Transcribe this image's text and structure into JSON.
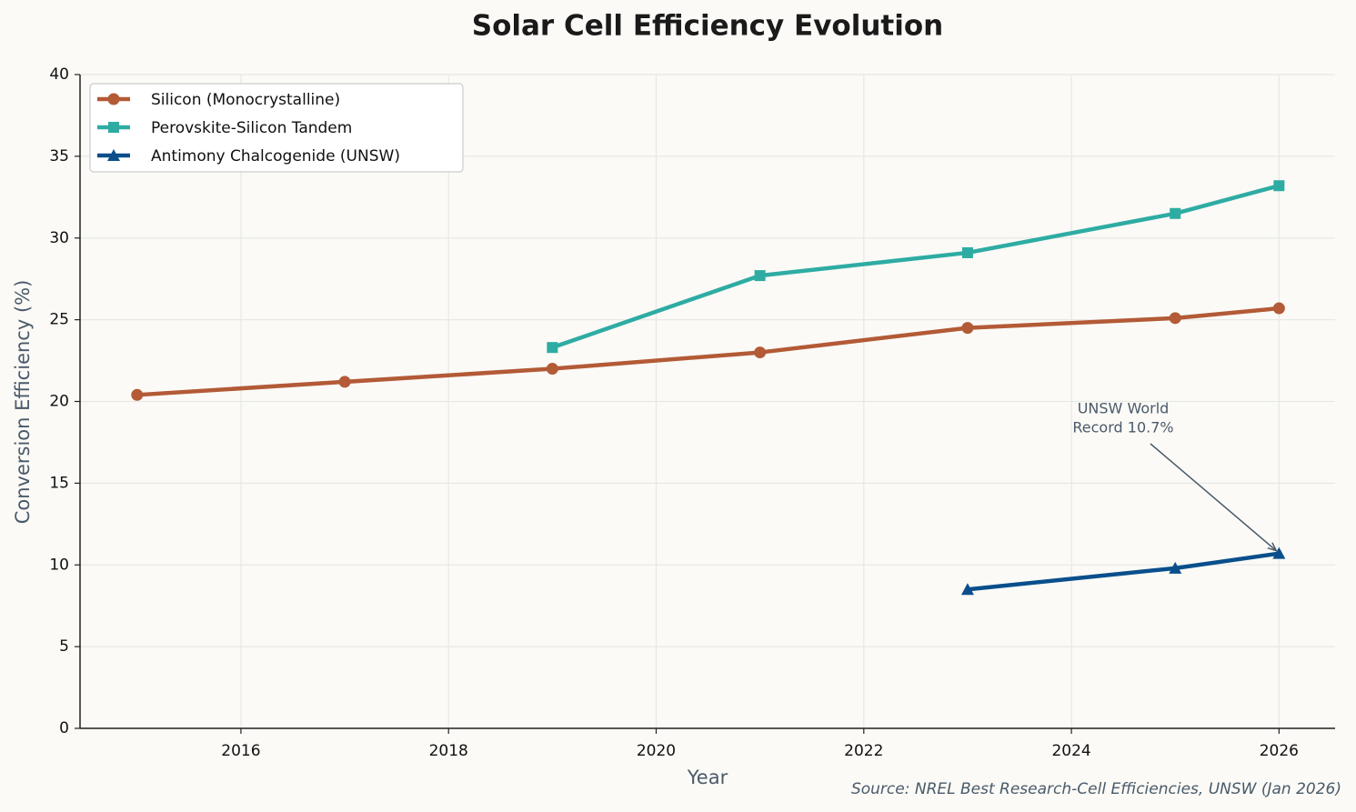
{
  "chart_data": {
    "type": "line",
    "title": "Solar Cell Efficiency Evolution",
    "x_label": "Year",
    "y_label": "Conversion Efficiency (%)",
    "x": [
      2015,
      2017,
      2019,
      2021,
      2023,
      2025,
      2026
    ],
    "series": [
      {
        "name": "Silicon (Monocrystalline)",
        "color": "#b35a36",
        "marker": "circle",
        "values": [
          20.4,
          21.2,
          22.0,
          23.0,
          24.5,
          25.1,
          25.7
        ]
      },
      {
        "name": "Perovskite-Silicon Tandem",
        "color": "#2eaca3",
        "marker": "square",
        "values": [
          null,
          null,
          23.3,
          27.7,
          29.1,
          31.5,
          33.2
        ]
      },
      {
        "name": "Antimony Chalcogenide (UNSW)",
        "color": "#0a4f8c",
        "marker": "triangle",
        "values": [
          null,
          null,
          null,
          null,
          8.5,
          9.8,
          10.7
        ]
      }
    ],
    "xlim": [
      2014.45,
      2026.54
    ],
    "xticks": [
      2016,
      2018,
      2020,
      2022,
      2024,
      2026
    ],
    "ylim": [
      0,
      40
    ],
    "yticks": [
      0,
      5,
      10,
      15,
      20,
      25,
      30,
      35,
      40
    ],
    "grid": true,
    "legend": "upper left",
    "annotation": {
      "lines": [
        "UNSW World",
        "Record 10.7%"
      ]
    },
    "source": "Source: NREL Best Research-Cell Efficiencies, UNSW (Jan 2026)"
  }
}
